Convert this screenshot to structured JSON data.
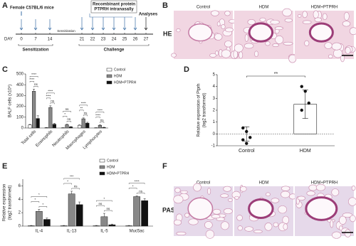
{
  "panels": [
    "A",
    "B",
    "C",
    "D",
    "E",
    "F"
  ],
  "timeline": {
    "title": "Female C57BL/6 mice",
    "day_label": "DAY",
    "days": [
      0,
      7,
      14,
      21,
      22,
      23,
      24,
      25,
      26,
      27
    ],
    "gap_label": "Sensitization",
    "treatment": [
      "Recombinant protein",
      "PTPRH intranasally"
    ],
    "end_label": "Analyses",
    "phases": [
      "Sensitization",
      "Challenge"
    ]
  },
  "histology": {
    "he": {
      "columns": [
        "Control",
        "HDM",
        "HDM+PTPRH"
      ],
      "stain": "HE"
    },
    "pas": {
      "columns": [
        "Control",
        "HDM",
        "HDM+PTPRH"
      ],
      "stain": "PAS"
    }
  },
  "chart_data": [
    {
      "type": "bar",
      "ylabel": "BALF cells (x10⁵)",
      "categories": [
        "Total cells",
        "Eosinophils",
        "Neutrophils",
        "Macrophages",
        "Lymphocytes"
      ],
      "ylim": [
        0,
        500
      ],
      "yticks": [
        0,
        100,
        200,
        300,
        400,
        500
      ],
      "series": [
        {
          "name": "Control",
          "color": "#ffffff",
          "values": [
            28,
            3,
            2,
            25,
            2
          ],
          "errors": [
            5,
            1,
            1,
            4,
            1
          ]
        },
        {
          "name": "HDM",
          "color": "#888888",
          "values": [
            340,
            190,
            30,
            85,
            25
          ],
          "errors": [
            20,
            15,
            6,
            8,
            4
          ]
        },
        {
          "name": "HDM+PTPRH",
          "color": "#111111",
          "values": [
            88,
            35,
            10,
            45,
            5
          ],
          "errors": [
            25,
            8,
            3,
            8,
            2
          ]
        }
      ],
      "significance": [
        [
          "****",
          "****",
          "ns"
        ],
        [
          "****",
          "****",
          "ns"
        ],
        [
          "ns",
          "*",
          "ns"
        ],
        [
          "****",
          "**",
          "ns"
        ],
        [
          "****",
          "****",
          "ns"
        ]
      ]
    },
    {
      "type": "dot-bar",
      "ylabel": [
        "Relative expression of Ptprh",
        "(log2 transformed)"
      ],
      "categories": [
        "Control",
        "HDM"
      ],
      "values": [
        0,
        2.5
      ],
      "errors": [
        0.6,
        1.2
      ],
      "points": [
        [
          0.5,
          0.2,
          -0.3,
          -0.5,
          -0.8
        ],
        [
          4.0,
          3.6,
          2.6,
          2.0
        ]
      ],
      "ylim": [
        -1,
        5
      ],
      "yticks": [
        -1,
        0,
        1,
        2,
        3,
        4,
        5
      ],
      "significance": "**"
    },
    {
      "type": "bar",
      "ylabel": [
        "Relative expression",
        "(log2 transformed)"
      ],
      "categories": [
        "IL-4",
        "IL-13",
        "IL-5",
        "Muc5ac"
      ],
      "ylim": [
        0,
        7
      ],
      "yticks": [
        0,
        2,
        4,
        6
      ],
      "series": [
        {
          "name": "Control",
          "color": "#ffffff",
          "values": [
            0.05,
            0.05,
            0.05,
            0.05
          ],
          "errors": [
            0.05,
            0.05,
            0.05,
            0.05
          ]
        },
        {
          "name": "HDM",
          "color": "#888888",
          "values": [
            2.2,
            4.8,
            1.4,
            4.4
          ],
          "errors": [
            0.3,
            0.4,
            0.5,
            0.1
          ]
        },
        {
          "name": "HDM+PTPRH",
          "color": "#111111",
          "values": [
            1.0,
            3.2,
            0.2,
            3.8
          ],
          "errors": [
            0.2,
            0.4,
            0.1,
            0.3
          ]
        }
      ],
      "significance": [
        [
          "*",
          "*",
          "*"
        ],
        [
          "***",
          "*",
          "ns"
        ],
        [
          "*",
          "ns",
          "ns"
        ],
        [
          "****",
          "*",
          "ns"
        ]
      ]
    }
  ]
}
